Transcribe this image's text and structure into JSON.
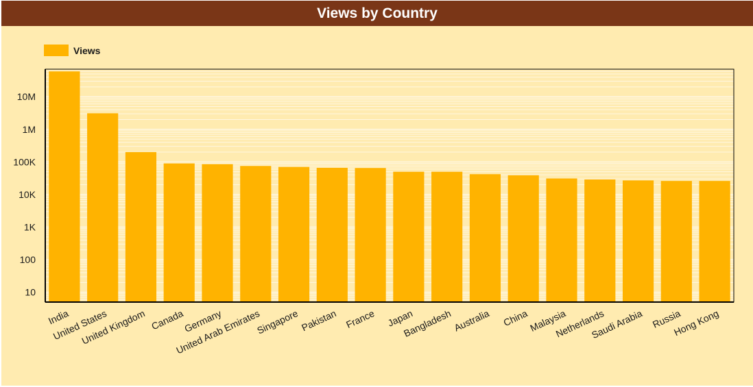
{
  "title": "Views by Country",
  "colors": {
    "header": "#7a3617",
    "background": "#ffebb0",
    "bar": "#ffb300",
    "grid": "#fff7e1",
    "text": "#1a1a1a"
  },
  "chart_data": {
    "type": "bar",
    "title": "Views by Country",
    "xlabel": "",
    "ylabel": "",
    "yscale": "log",
    "ylim": [
      5,
      70000000
    ],
    "yticks": [
      10,
      100,
      1000,
      10000,
      100000,
      1000000,
      10000000
    ],
    "ytick_labels": [
      "10",
      "100",
      "1K",
      "10K",
      "100K",
      "1M",
      "10M"
    ],
    "legend": "top-left",
    "grid": true,
    "categories": [
      "India",
      "United States",
      "United Kingdom",
      "Canada",
      "Germany",
      "United Arab Emirates",
      "Singapore",
      "Pakistan",
      "France",
      "Japan",
      "Bangladesh",
      "Australia",
      "China",
      "Malaysia",
      "Netherlands",
      "Saudi Arabia",
      "Russia",
      "Hong Kong"
    ],
    "series": [
      {
        "name": "Views",
        "values": [
          60000000,
          3100000,
          200000,
          90000,
          85000,
          75000,
          70000,
          66000,
          65000,
          50000,
          50000,
          42000,
          39000,
          31000,
          29000,
          27000,
          26000,
          26000
        ]
      }
    ]
  }
}
